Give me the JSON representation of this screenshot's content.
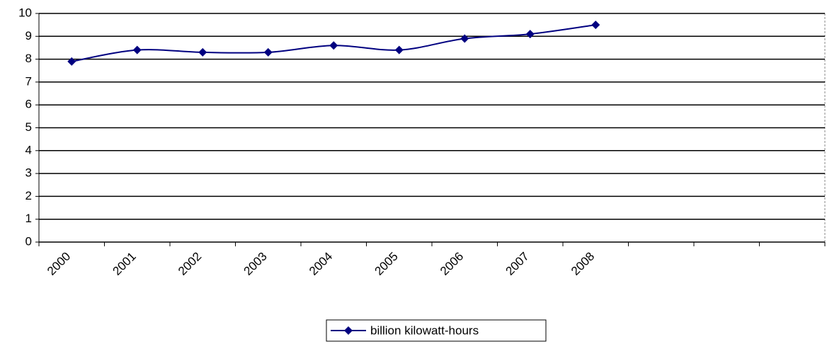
{
  "chart_data": {
    "type": "line",
    "categories": [
      "2000",
      "2001",
      "2002",
      "2003",
      "2004",
      "2005",
      "2006",
      "2007",
      "2008",
      null,
      null,
      null
    ],
    "series": [
      {
        "name": "billion kilowatt-hours",
        "color": "#000080",
        "values": [
          7.9,
          8.4,
          8.3,
          8.3,
          8.6,
          8.4,
          8.9,
          9.1,
          9.5,
          null,
          null,
          null
        ]
      }
    ],
    "ylim": [
      0,
      10
    ],
    "yticks": [
      0,
      1,
      2,
      3,
      4,
      5,
      6,
      7,
      8,
      9,
      10
    ],
    "grid": true,
    "legend": "bottom"
  }
}
